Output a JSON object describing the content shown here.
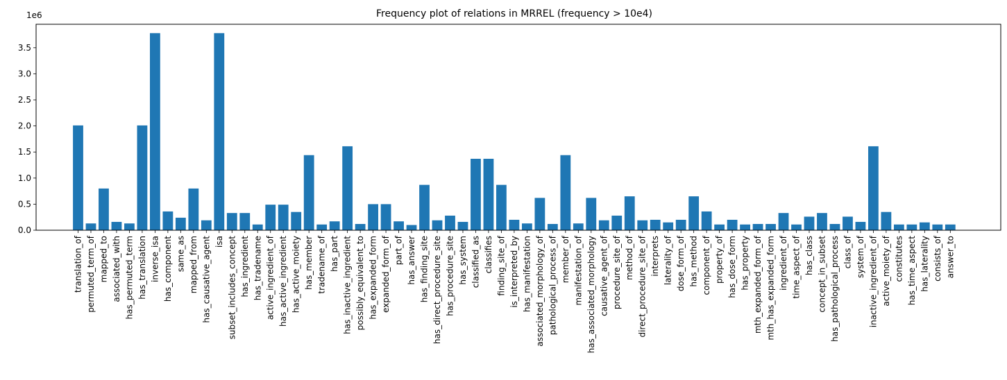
{
  "chart_data": {
    "type": "bar",
    "title": "Frequency plot of relations in MRREL (frequency > 10e4)",
    "xlabel": "",
    "ylabel": "",
    "y_offset_label": "1e6",
    "y_ticks": [
      0.0,
      0.5,
      1.0,
      1.5,
      2.0,
      2.5,
      3.0,
      3.5
    ],
    "y_tick_labels": [
      "0.0",
      "0.5",
      "1.0",
      "1.5",
      "2.0",
      "2.5",
      "3.0",
      "3.5"
    ],
    "ylim": [
      0,
      3.95
    ],
    "grid": false,
    "color": "#1f77b4",
    "categories": [
      "translation_of",
      "permuted_term_of",
      "mapped_to",
      "associated_with",
      "has_permuted_term",
      "has_translation",
      "inverse_isa",
      "has_component",
      "same_as",
      "mapped_from",
      "has_causative_agent",
      "isa",
      "subset_includes_concept",
      "has_ingredient",
      "has_tradename",
      "active_ingredient_of",
      "has_active_ingredient",
      "has_active_moiety",
      "has_member",
      "tradename_of",
      "has_part",
      "has_inactive_ingredient",
      "possibly_equivalent_to",
      "has_expanded_form",
      "expanded_form_of",
      "part_of",
      "has_answer",
      "has_finding_site",
      "has_direct_procedure_site",
      "has_procedure_site",
      "has_system",
      "classified_as",
      "classifies",
      "finding_site_of",
      "is_interpreted_by",
      "has_manifestation",
      "associated_morphology_of",
      "pathological_process_of",
      "member_of",
      "manifestation_of",
      "has_associated_morphology",
      "causative_agent_of",
      "procedure_site_of",
      "method_of",
      "direct_procedure_site_of",
      "interprets",
      "laterality_of",
      "dose_form_of",
      "has_method",
      "component_of",
      "property_of",
      "has_dose_form",
      "has_property",
      "mth_expanded_form_of",
      "mth_has_expanded_form",
      "ingredient_of",
      "time_aspect_of",
      "has_class",
      "concept_in_subset",
      "has_pathological_process",
      "class_of",
      "system_of",
      "inactive_ingredient_of",
      "active_moiety_of",
      "constitutes",
      "has_time_aspect",
      "has_laterality",
      "consists_of",
      "answer_to"
    ],
    "values": [
      2.01,
      0.13,
      0.8,
      0.16,
      0.13,
      2.01,
      3.78,
      0.36,
      0.24,
      0.8,
      0.19,
      3.78,
      0.33,
      0.33,
      0.11,
      0.49,
      0.49,
      0.35,
      1.44,
      0.11,
      0.17,
      1.61,
      0.12,
      0.5,
      0.5,
      0.17,
      0.1,
      0.87,
      0.19,
      0.28,
      0.16,
      1.37,
      1.37,
      0.87,
      0.2,
      0.13,
      0.62,
      0.12,
      1.44,
      0.13,
      0.62,
      0.19,
      0.28,
      0.65,
      0.19,
      0.2,
      0.15,
      0.2,
      0.65,
      0.36,
      0.11,
      0.2,
      0.11,
      0.12,
      0.12,
      0.33,
      0.11,
      0.26,
      0.33,
      0.12,
      0.26,
      0.16,
      1.61,
      0.35,
      0.11,
      0.11,
      0.15,
      0.11,
      0.11
    ]
  }
}
